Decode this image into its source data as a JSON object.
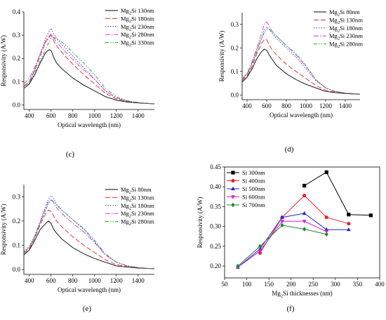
{
  "chart_data": [
    {
      "panel_label": "(c)",
      "type": "line",
      "xlabel": "Optical wavelength (nm)",
      "ylabel": "Responsivity (A/W)",
      "xlim": [
        350,
        1550
      ],
      "ylim": [
        -0.02,
        0.4
      ],
      "xticks": [
        400,
        600,
        800,
        1000,
        1200,
        1400
      ],
      "yticks": [
        0.0,
        0.1,
        0.2,
        0.3,
        0.4
      ],
      "yticks_text": [
        "0.0",
        "0.1",
        "0.2",
        "0.3",
        "0.4"
      ],
      "grid": false,
      "legend_position": "top-right",
      "series": [
        {
          "name": "Mg2Si 130nm",
          "color": "#000000",
          "dash": "solid",
          "x": [
            350,
            400,
            450,
            500,
            550,
            580,
            600,
            620,
            650,
            700,
            750,
            800,
            900,
            1000,
            1100,
            1200,
            1300,
            1400,
            1500,
            1550
          ],
          "y": [
            0.07,
            0.09,
            0.13,
            0.18,
            0.225,
            0.237,
            0.235,
            0.21,
            0.18,
            0.155,
            0.135,
            0.115,
            0.085,
            0.06,
            0.035,
            0.02,
            0.012,
            0.008,
            0.005,
            0.004
          ]
        },
        {
          "name": "Mg2Si 180nm",
          "color": "#e8242c",
          "dash": "7,3",
          "x": [
            350,
            400,
            450,
            500,
            550,
            580,
            600,
            620,
            650,
            700,
            750,
            800,
            900,
            1000,
            1100,
            1200,
            1300,
            1400,
            1500,
            1550
          ],
          "y": [
            0.08,
            0.1,
            0.15,
            0.21,
            0.27,
            0.29,
            0.3,
            0.28,
            0.255,
            0.225,
            0.2,
            0.175,
            0.13,
            0.09,
            0.05,
            0.025,
            0.015,
            0.01,
            0.006,
            0.005
          ]
        },
        {
          "name": "Mg2Si 230nm",
          "color": "#3434c8",
          "dash": "1.5,2",
          "x": [
            350,
            400,
            450,
            500,
            550,
            580,
            600,
            620,
            650,
            700,
            750,
            800,
            900,
            1000,
            1100,
            1200,
            1300,
            1400,
            1500,
            1550
          ],
          "y": [
            0.075,
            0.1,
            0.155,
            0.22,
            0.285,
            0.315,
            0.33,
            0.31,
            0.285,
            0.26,
            0.235,
            0.21,
            0.16,
            0.11,
            0.06,
            0.03,
            0.015,
            0.01,
            0.006,
            0.005
          ]
        },
        {
          "name": "Mg2Si 280nm",
          "color": "#d33ad3",
          "dash": "7,2,1.5,2",
          "x": [
            350,
            400,
            450,
            500,
            550,
            580,
            600,
            620,
            650,
            700,
            750,
            800,
            900,
            1000,
            1100,
            1200,
            1300,
            1400,
            1500,
            1550
          ],
          "y": [
            0.09,
            0.115,
            0.16,
            0.22,
            0.275,
            0.295,
            0.305,
            0.29,
            0.27,
            0.245,
            0.22,
            0.195,
            0.15,
            0.11,
            0.06,
            0.03,
            0.016,
            0.01,
            0.006,
            0.005
          ]
        },
        {
          "name": "Mg2Si 330nm",
          "color": "#1e9e3a",
          "dash": "5,2,1.5,2,1.5,2",
          "x": [
            350,
            400,
            450,
            500,
            550,
            580,
            600,
            620,
            650,
            700,
            750,
            800,
            900,
            1000,
            1100,
            1200,
            1300,
            1400,
            1500,
            1550
          ],
          "y": [
            0.07,
            0.095,
            0.14,
            0.19,
            0.24,
            0.27,
            0.285,
            0.29,
            0.285,
            0.27,
            0.25,
            0.225,
            0.18,
            0.13,
            0.07,
            0.035,
            0.018,
            0.01,
            0.006,
            0.005
          ]
        }
      ]
    },
    {
      "panel_label": "(d)",
      "type": "line",
      "xlabel": "Optical wavelength (nm)",
      "ylabel": "Responsivity (A/W)",
      "xlim": [
        350,
        1550
      ],
      "ylim": [
        -0.02,
        0.35
      ],
      "xticks": [
        400,
        600,
        800,
        1000,
        1200,
        1400
      ],
      "yticks": [
        0.0,
        0.1,
        0.2,
        0.3
      ],
      "yticks_text": [
        "0.0",
        "0.1",
        "0.2",
        "0.3"
      ],
      "grid": false,
      "legend_position": "top-right",
      "series": [
        {
          "name": "Mg2Si 80nm",
          "color": "#000000",
          "dash": "solid",
          "x": [
            350,
            400,
            450,
            500,
            550,
            575,
            600,
            625,
            650,
            700,
            800,
            900,
            1000,
            1100,
            1200,
            1300,
            1400,
            1500,
            1550
          ],
          "y": [
            0.055,
            0.075,
            0.11,
            0.155,
            0.185,
            0.195,
            0.19,
            0.17,
            0.155,
            0.125,
            0.09,
            0.065,
            0.045,
            0.03,
            0.015,
            0.01,
            0.006,
            0.004,
            0.003
          ]
        },
        {
          "name": "Mg2Si 130nm",
          "color": "#e8242c",
          "dash": "7,3",
          "x": [
            350,
            400,
            450,
            500,
            550,
            575,
            600,
            625,
            650,
            700,
            800,
            900,
            1000,
            1100,
            1200,
            1300,
            1400,
            1500,
            1550
          ],
          "y": [
            0.06,
            0.08,
            0.12,
            0.175,
            0.22,
            0.235,
            0.235,
            0.215,
            0.195,
            0.17,
            0.13,
            0.1,
            0.07,
            0.04,
            0.02,
            0.012,
            0.007,
            0.004,
            0.003
          ]
        },
        {
          "name": "Mg2Si 180nm",
          "color": "#3434c8",
          "dash": "1.5,2",
          "x": [
            350,
            400,
            450,
            500,
            550,
            575,
            600,
            625,
            650,
            700,
            800,
            900,
            1000,
            1100,
            1200,
            1300,
            1400,
            1500,
            1550
          ],
          "y": [
            0.07,
            0.09,
            0.135,
            0.19,
            0.245,
            0.275,
            0.29,
            0.28,
            0.265,
            0.24,
            0.2,
            0.16,
            0.11,
            0.06,
            0.03,
            0.015,
            0.008,
            0.005,
            0.004
          ]
        },
        {
          "name": "Mg2Si 230nm",
          "color": "#d33ad3",
          "dash": "7,2,1.5,2",
          "x": [
            350,
            400,
            450,
            500,
            550,
            575,
            600,
            625,
            650,
            700,
            800,
            900,
            1000,
            1100,
            1200,
            1300,
            1400,
            1500,
            1550
          ],
          "y": [
            0.07,
            0.09,
            0.14,
            0.2,
            0.265,
            0.3,
            0.31,
            0.295,
            0.275,
            0.25,
            0.21,
            0.17,
            0.12,
            0.065,
            0.03,
            0.015,
            0.008,
            0.005,
            0.004
          ]
        },
        {
          "name": "Mg2Si 280nm",
          "color": "#1e9e3a",
          "dash": "5,2,1.5,2,1.5,2",
          "x": [
            350,
            400,
            450,
            500,
            550,
            575,
            600,
            625,
            650,
            700,
            800,
            900,
            1000,
            1100,
            1200,
            1300,
            1400,
            1500,
            1550
          ],
          "y": [
            0.065,
            0.085,
            0.13,
            0.185,
            0.24,
            0.265,
            0.28,
            0.28,
            0.27,
            0.25,
            0.21,
            0.175,
            0.125,
            0.065,
            0.03,
            0.015,
            0.008,
            0.005,
            0.004
          ]
        }
      ]
    },
    {
      "panel_label": "(e)",
      "type": "line",
      "xlabel": "Optical wavelength (nm)",
      "ylabel": "Responsivity (A/W)",
      "xlim": [
        350,
        1550
      ],
      "ylim": [
        -0.02,
        0.35
      ],
      "xticks": [
        400,
        600,
        800,
        1000,
        1200,
        1400
      ],
      "yticks": [
        0.0,
        0.1,
        0.2,
        0.3
      ],
      "yticks_text": [
        "0.0",
        "0.1",
        "0.2",
        "0.3"
      ],
      "grid": false,
      "legend_position": "top-right",
      "series": [
        {
          "name": "Mg2Si 80nm",
          "color": "#000000",
          "dash": "solid",
          "x": [
            350,
            400,
            450,
            500,
            550,
            575,
            600,
            625,
            650,
            700,
            800,
            900,
            1000,
            1100,
            1200,
            1300,
            1400,
            1500,
            1550
          ],
          "y": [
            0.06,
            0.08,
            0.12,
            0.165,
            0.19,
            0.2,
            0.19,
            0.165,
            0.15,
            0.125,
            0.09,
            0.065,
            0.045,
            0.03,
            0.015,
            0.01,
            0.006,
            0.004,
            0.003
          ]
        },
        {
          "name": "Mg2Si 130nm",
          "color": "#e8242c",
          "dash": "7,3",
          "x": [
            350,
            400,
            450,
            500,
            550,
            575,
            600,
            625,
            650,
            700,
            800,
            900,
            1000,
            1100,
            1200,
            1300,
            1400,
            1500,
            1550
          ],
          "y": [
            0.065,
            0.085,
            0.13,
            0.185,
            0.23,
            0.245,
            0.24,
            0.22,
            0.2,
            0.175,
            0.135,
            0.1,
            0.07,
            0.04,
            0.02,
            0.012,
            0.007,
            0.004,
            0.003
          ]
        },
        {
          "name": "Mg2Si 180nm",
          "color": "#3434c8",
          "dash": "1.5,2",
          "x": [
            350,
            400,
            450,
            500,
            550,
            575,
            600,
            625,
            650,
            700,
            800,
            900,
            1000,
            1100,
            1200,
            1300,
            1400,
            1500,
            1550
          ],
          "y": [
            0.075,
            0.095,
            0.14,
            0.2,
            0.26,
            0.29,
            0.305,
            0.29,
            0.27,
            0.245,
            0.205,
            0.165,
            0.115,
            0.06,
            0.03,
            0.015,
            0.008,
            0.005,
            0.004
          ]
        },
        {
          "name": "Mg2Si 230nm",
          "color": "#d33ad3",
          "dash": "7,2,1.5,2",
          "x": [
            350,
            400,
            450,
            500,
            550,
            575,
            600,
            625,
            650,
            700,
            800,
            900,
            1000,
            1100,
            1200,
            1300,
            1400,
            1500,
            1550
          ],
          "y": [
            0.07,
            0.09,
            0.135,
            0.195,
            0.25,
            0.28,
            0.29,
            0.275,
            0.255,
            0.23,
            0.19,
            0.155,
            0.11,
            0.06,
            0.03,
            0.015,
            0.008,
            0.005,
            0.004
          ]
        },
        {
          "name": "Mg2Si 280nm",
          "color": "#1e9e3a",
          "dash": "5,2,1.5,2,1.5,2",
          "x": [
            350,
            400,
            450,
            500,
            550,
            575,
            600,
            625,
            650,
            700,
            800,
            900,
            1000,
            1100,
            1200,
            1300,
            1400,
            1500,
            1550
          ],
          "y": [
            0.07,
            0.09,
            0.135,
            0.19,
            0.245,
            0.27,
            0.285,
            0.28,
            0.265,
            0.245,
            0.205,
            0.17,
            0.12,
            0.065,
            0.03,
            0.015,
            0.008,
            0.005,
            0.004
          ]
        }
      ]
    },
    {
      "panel_label": "(f)",
      "type": "line",
      "xlabel": "Mg2Si thicknesses (nm)",
      "ylabel": "Responsivity (A/W)",
      "xlim": [
        50,
        400
      ],
      "ylim": [
        0.17,
        0.45
      ],
      "xticks": [
        50,
        100,
        150,
        200,
        250,
        300,
        350,
        400
      ],
      "yticks": [
        0.2,
        0.25,
        0.3,
        0.35,
        0.4,
        0.45
      ],
      "yticks_text": [
        "0.20",
        "0.25",
        "0.30",
        "0.35",
        "0.40",
        "0.45"
      ],
      "grid": false,
      "legend_position": "top-left",
      "series": [
        {
          "name": "Si 300nm",
          "color": "#000000",
          "marker": "square",
          "x": [
            230,
            280,
            330,
            380
          ],
          "y": [
            0.403,
            0.437,
            0.33,
            0.328
          ]
        },
        {
          "name": "Si 400nm",
          "color": "#e8242c",
          "marker": "circle",
          "x": [
            130,
            180,
            230,
            280,
            330
          ],
          "y": [
            0.233,
            0.323,
            0.378,
            0.323,
            0.307
          ]
        },
        {
          "name": "Si 500nm",
          "color": "#2424d8",
          "marker": "triangle-up",
          "x": [
            80,
            130,
            180,
            230,
            280,
            330
          ],
          "y": [
            0.197,
            0.243,
            0.323,
            0.333,
            0.292,
            0.292
          ]
        },
        {
          "name": "Si 600nm",
          "color": "#d020d0",
          "marker": "triangle-down",
          "x": [
            80,
            130,
            180,
            230,
            280
          ],
          "y": [
            0.197,
            0.238,
            0.313,
            0.313,
            0.287
          ]
        },
        {
          "name": "Si 700nm",
          "color": "#1e8a2a",
          "marker": "diamond",
          "x": [
            80,
            130,
            180,
            230,
            280
          ],
          "y": [
            0.2,
            0.25,
            0.303,
            0.293,
            0.28
          ]
        }
      ]
    }
  ]
}
